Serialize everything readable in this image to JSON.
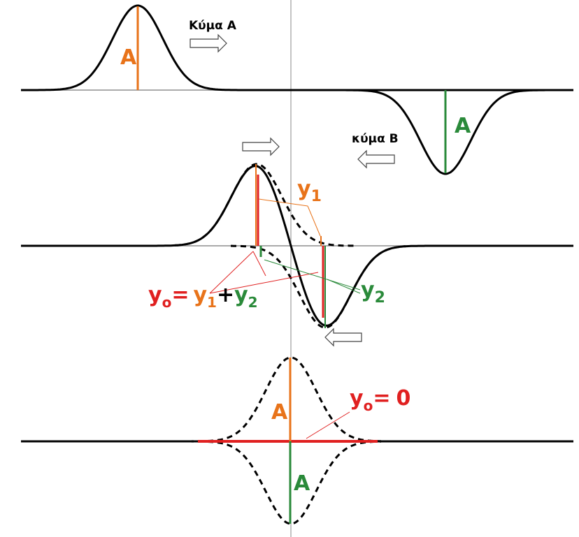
{
  "top_panel": {
    "wave_a_label": "Κύμα Α",
    "amplitude_a": "A",
    "amplitude_b": "A",
    "wave_b_label": "κύμα Β"
  },
  "middle_panel": {
    "y1": {
      "base": "y",
      "sub": "1"
    },
    "y2": {
      "base": "y",
      "sub": "2"
    },
    "formula": {
      "lhs_base": "y",
      "lhs_sub": "o",
      "equals": "=",
      "t1_base": "y",
      "t1_sub": "1",
      "plus": "+",
      "t2_base": "y",
      "t2_sub": "2"
    }
  },
  "bottom_panel": {
    "amplitude_a": "A",
    "amplitude_b": "A",
    "result": {
      "base": "y",
      "sub": "o",
      "equals": "=",
      "value": "0"
    }
  }
}
